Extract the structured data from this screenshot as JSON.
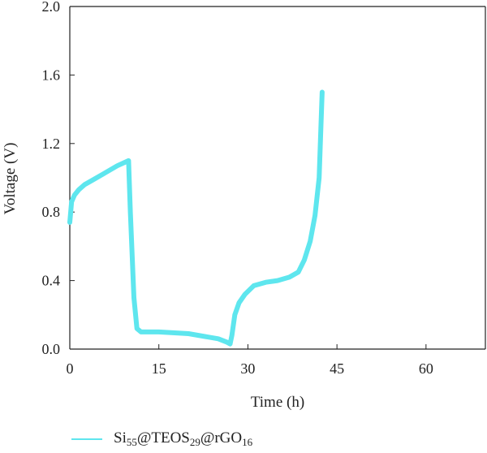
{
  "chart_data": {
    "type": "line",
    "xlabel": "Time (h)",
    "ylabel": "Voltage (V)",
    "xlim": [
      0,
      70
    ],
    "ylim": [
      0,
      2.0
    ],
    "xticks": [
      "0",
      "15",
      "30",
      "45",
      "60"
    ],
    "yticks": [
      "0.0",
      "0.4",
      "0.8",
      "1.2",
      "1.6",
      "2.0"
    ],
    "grid": false,
    "legend_position": "bottom-left",
    "color": "#5ee6ee",
    "series": [
      {
        "name": "Si55@TEOS29@rGO16",
        "name_parts": {
          "si": "Si",
          "si_sub": "55",
          "teos": "@TEOS",
          "teos_sub": "29",
          "rgo": "@rGO",
          "rgo_sub": "16"
        },
        "x": [
          0,
          0.3,
          0.8,
          1.5,
          2.5,
          4.0,
          6.0,
          8.0,
          9.9,
          10.2,
          10.8,
          11.3,
          12.0,
          15.0,
          20.0,
          25.0,
          26.5,
          27.0,
          27.3,
          27.8,
          28.5,
          29.5,
          31.0,
          33.0,
          35.0,
          37.0,
          38.5,
          39.5,
          40.5,
          41.3,
          42.0,
          42.3,
          42.5
        ],
        "y": [
          0.74,
          0.86,
          0.9,
          0.93,
          0.96,
          0.99,
          1.03,
          1.07,
          1.1,
          0.8,
          0.3,
          0.12,
          0.1,
          0.1,
          0.09,
          0.06,
          0.04,
          0.03,
          0.08,
          0.2,
          0.27,
          0.32,
          0.37,
          0.39,
          0.4,
          0.42,
          0.45,
          0.52,
          0.63,
          0.78,
          1.0,
          1.3,
          1.5
        ]
      }
    ]
  }
}
